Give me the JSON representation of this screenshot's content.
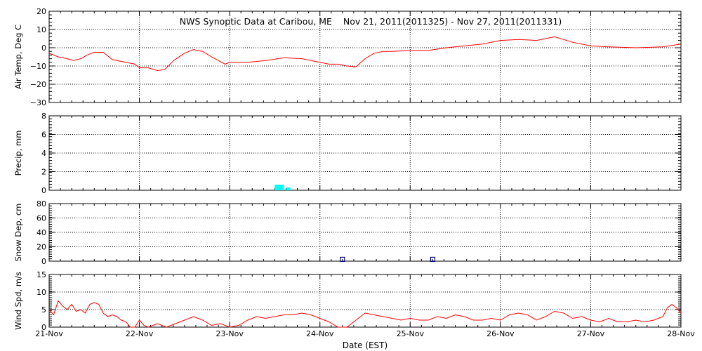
{
  "title": "NWS Synoptic Data at Caribou, ME    Nov 21, 2011(2011325) - Nov 27, 2011(2011331)",
  "xlabel": "Date (EST)",
  "x_ticks": [
    "21-Nov",
    "22-Nov",
    "23-Nov",
    "24-Nov",
    "25-Nov",
    "26-Nov",
    "27-Nov",
    "28-Nov"
  ],
  "colors": {
    "temp": "#ff0000",
    "precip": "#00ffff",
    "snow": "#000080",
    "wind": "#ff0000",
    "grid": "#000000"
  },
  "chart_data": [
    {
      "type": "line",
      "ylabel": "Air Temp, Deg C",
      "ylim": [
        -30,
        20
      ],
      "yticks": [
        "20",
        "10",
        "0",
        "−10",
        "−20",
        "−30"
      ],
      "series": [
        {
          "x": [
            0,
            0.1,
            0.2,
            0.27,
            0.35,
            0.42,
            0.5,
            0.6,
            0.7,
            0.75,
            0.85,
            0.95,
            1.0,
            1.1,
            1.2,
            1.28,
            1.38,
            1.5,
            1.6,
            1.7,
            1.8,
            1.95,
            2.0,
            2.2,
            2.4,
            2.6,
            2.8,
            3.0,
            3.1,
            3.2,
            3.3,
            3.4,
            3.5,
            3.6,
            3.7,
            3.8,
            4.0,
            4.2,
            4.4,
            4.6,
            4.8,
            5.0,
            5.2,
            5.4,
            5.6,
            5.8,
            6.0,
            6.2,
            6.5,
            6.8,
            7.0
          ],
          "values": [
            -3,
            -5,
            -6,
            -7,
            -6,
            -4,
            -2.5,
            -2.5,
            -6.5,
            -7,
            -8,
            -9,
            -11,
            -11,
            -12.5,
            -12,
            -7,
            -3,
            -1,
            -2,
            -5,
            -9,
            -8,
            -8,
            -7,
            -5.5,
            -6,
            -8,
            -9,
            -9,
            -10,
            -10.5,
            -6,
            -3,
            -2,
            -2,
            -1.5,
            -1.5,
            0,
            1,
            2,
            4,
            4.5,
            4,
            6,
            3,
            1,
            0.5,
            0,
            0.5,
            2
          ]
        }
      ]
    },
    {
      "type": "bar",
      "ylabel": "Precip, mm",
      "ylim": [
        0,
        8
      ],
      "yticks": [
        "8",
        "6",
        "4",
        "2",
        "0"
      ],
      "series": [
        {
          "x": [
            2.55,
            2.65
          ],
          "widths": [
            0.1,
            0.05
          ],
          "values": [
            0.6,
            0.3
          ]
        }
      ]
    },
    {
      "type": "scatter",
      "ylabel": "Snow Dep, cm",
      "ylim": [
        0,
        80
      ],
      "yticks": [
        "80",
        "60",
        "40",
        "20",
        "0"
      ],
      "series": [
        {
          "x": [
            3.25,
            4.25
          ],
          "values": [
            2.5,
            2.5
          ]
        }
      ]
    },
    {
      "type": "line",
      "ylabel": "Wind Spd, m/s",
      "ylim": [
        0,
        15
      ],
      "yticks": [
        "15",
        "10",
        "5",
        "0"
      ],
      "series": [
        {
          "x": [
            0,
            0.05,
            0.1,
            0.15,
            0.2,
            0.25,
            0.3,
            0.35,
            0.4,
            0.45,
            0.5,
            0.55,
            0.6,
            0.65,
            0.7,
            0.75,
            0.8,
            0.85,
            0.9,
            0.95,
            1.0,
            1.05,
            1.1,
            1.15,
            1.2,
            1.3,
            1.4,
            1.5,
            1.6,
            1.7,
            1.8,
            1.9,
            2.0,
            2.1,
            2.2,
            2.3,
            2.4,
            2.5,
            2.6,
            2.7,
            2.8,
            2.9,
            3.0,
            3.1,
            3.2,
            3.3,
            3.4,
            3.5,
            3.6,
            3.7,
            3.8,
            3.9,
            4.0,
            4.1,
            4.2,
            4.3,
            4.4,
            4.5,
            4.6,
            4.7,
            4.8,
            4.9,
            5.0,
            5.1,
            5.2,
            5.3,
            5.4,
            5.5,
            5.6,
            5.7,
            5.8,
            5.9,
            6.0,
            6.1,
            6.2,
            6.3,
            6.4,
            6.5,
            6.6,
            6.7,
            6.8,
            6.85,
            6.9,
            6.95,
            7.0
          ],
          "values": [
            5,
            3.5,
            7.5,
            6,
            5,
            6.5,
            4.5,
            5,
            4,
            6.5,
            7,
            6.5,
            4,
            3,
            3.5,
            3,
            2,
            1.5,
            0,
            0,
            2,
            0.5,
            0,
            0.5,
            1,
            0,
            1,
            2,
            3,
            2,
            0.5,
            1,
            0,
            0.5,
            2,
            3,
            2.5,
            3,
            3.5,
            3.5,
            4,
            3.5,
            2.5,
            1.5,
            0,
            0,
            2,
            4,
            3.5,
            3,
            2.5,
            2,
            2.5,
            2,
            2,
            3,
            2.5,
            3.5,
            3,
            2,
            2,
            2.5,
            2,
            3.5,
            4,
            3.5,
            2,
            3,
            4.5,
            4,
            2.5,
            3,
            2,
            1.5,
            2.5,
            1.5,
            1.5,
            2,
            1.5,
            2,
            3,
            5.5,
            6.5,
            5.5,
            4
          ]
        }
      ]
    }
  ]
}
